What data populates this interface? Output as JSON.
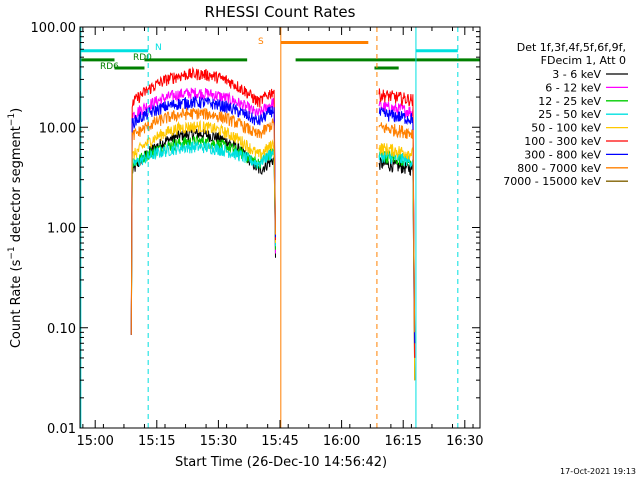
{
  "chart_data": {
    "type": "line",
    "title": "RHESSI Count Rates",
    "xlabel": "Start Time (26-Dec-10 14:56:42)",
    "ylabel_prefix": "Count Rate (s",
    "ylabel_sup": "−1",
    "ylabel_mid": " detector segment",
    "ylabel_sup2": "−1",
    "ylabel_suffix": ")",
    "y_scale": "log",
    "ylim": [
      0.01,
      100
    ],
    "xlim_minutes": [
      14.3,
      111.7
    ],
    "xticks": [
      {
        "label": "15:00",
        "minute": 18
      },
      {
        "label": "15:15",
        "minute": 33
      },
      {
        "label": "15:30",
        "minute": 48
      },
      {
        "label": "15:45",
        "minute": 63
      },
      {
        "label": "16:00",
        "minute": 78
      },
      {
        "label": "16:15",
        "minute": 93
      },
      {
        "label": "16:30",
        "minute": 108
      }
    ],
    "yticks": [
      {
        "label": "100.00",
        "value": 100
      },
      {
        "label": "10.00",
        "value": 10
      },
      {
        "label": "1.00",
        "value": 1
      },
      {
        "label": "0.10",
        "value": 0.1
      },
      {
        "label": "0.01",
        "value": 0.01
      }
    ],
    "legend": {
      "header_lines": [
        "Det 1f,3f,4f,5f,6f,9f,",
        "FDecim 1, Att 0"
      ],
      "placement": "right"
    },
    "series": [
      {
        "name": "3 - 6 keV",
        "color": "#000000",
        "base": 3.5,
        "peak": 8.6
      },
      {
        "name": "6 - 12 keV",
        "color": "#ff00ff",
        "base": 13.0,
        "peak": 22.0
      },
      {
        "name": "12 - 25 keV",
        "color": "#00cc00",
        "base": 4.2,
        "peak": 7.2
      },
      {
        "name": "25 - 50 keV",
        "color": "#00e0e0",
        "base": 4.2,
        "peak": 6.4
      },
      {
        "name": "50 - 100 keV",
        "color": "#ffc800",
        "base": 5.0,
        "peak": 10.2
      },
      {
        "name": "100 - 300 keV",
        "color": "#ff0000",
        "base": 17.0,
        "peak": 34.0
      },
      {
        "name": "300 - 800 keV",
        "color": "#0000ff",
        "base": 11.0,
        "peak": 17.8
      },
      {
        "name": "800 - 7000 keV",
        "color": "#ff8000",
        "base": 8.0,
        "peak": 13.8
      },
      {
        "name": "7000 - 15000 keV",
        "color": "#806000",
        "base": null,
        "peak": null
      }
    ],
    "segments": [
      {
        "start_minute": 26.8,
        "end_minute": 61.6
      },
      {
        "start_minute": 87.1,
        "end_minute": 95.4
      }
    ],
    "status_bars": [
      {
        "label": "N",
        "color": "#00e0e0",
        "value": 58,
        "segments": [
          [
            14.3,
            30.9
          ],
          [
            96.1,
            106.3
          ]
        ]
      },
      {
        "label": "RD0",
        "color": "#008000",
        "value": 47,
        "segments": [
          [
            14.3,
            22.7
          ],
          [
            30.0,
            55.0
          ],
          [
            66.8,
            111.7
          ]
        ]
      },
      {
        "label": "RD6",
        "color": "#008000",
        "value": 39,
        "segments": [
          [
            22.7,
            30.0
          ],
          [
            86.0,
            91.9
          ]
        ]
      },
      {
        "label": "S",
        "color": "#ff8000",
        "value": 70,
        "segments": [
          [
            63.2,
            84.5
          ]
        ]
      }
    ],
    "vlines": [
      {
        "minute": 14.5,
        "style": "solid",
        "color": "#00e0e0"
      },
      {
        "minute": 30.9,
        "style": "dashed",
        "color": "#00e0e0"
      },
      {
        "minute": 63.2,
        "style": "solid",
        "color": "#ff8000"
      },
      {
        "minute": 86.6,
        "style": "dashed",
        "color": "#ff8000"
      },
      {
        "minute": 96.1,
        "style": "solid",
        "color": "#00e0e0"
      },
      {
        "minute": 106.3,
        "style": "dashed",
        "color": "#00e0e0"
      }
    ],
    "footer_timestamp": "17-Oct-2021 19:13"
  }
}
